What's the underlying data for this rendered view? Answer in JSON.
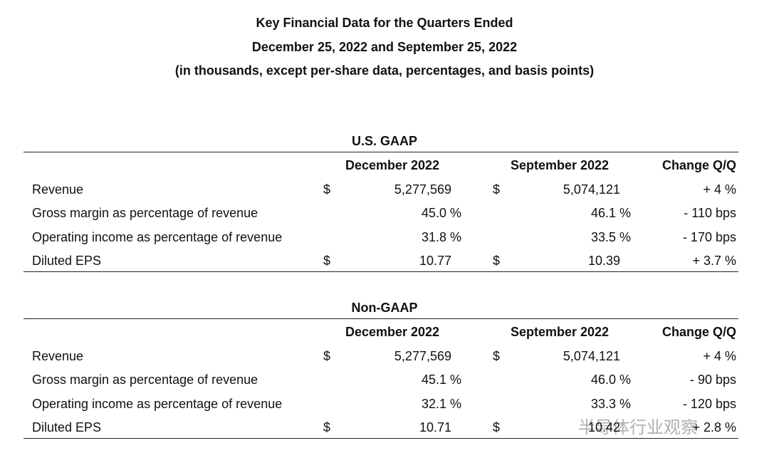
{
  "header": {
    "lines": [
      "Key Financial Data for the Quarters Ended",
      "December 25, 2022 and September 25, 2022",
      "(in thousands, except per-share data, percentages, and basis points)"
    ]
  },
  "sections": [
    {
      "title": "U.S. GAAP",
      "headers": [
        "December 2022",
        "September 2022",
        "Change Q/Q"
      ],
      "rows": [
        {
          "label": "Revenue",
          "cells": [
            {
              "currency": "$",
              "value": "5,277,569"
            },
            {
              "currency": "$",
              "value": "5,074,121"
            }
          ],
          "change": "+ 4 %"
        },
        {
          "label": "Gross margin as percentage of revenue",
          "cells": [
            {
              "value": "45.0 %"
            },
            {
              "value": "46.1 %"
            }
          ],
          "change": "- 110 bps"
        },
        {
          "label": "Operating income as percentage of revenue",
          "cells": [
            {
              "value": "31.8 %"
            },
            {
              "value": "33.5 %"
            }
          ],
          "change": "- 170 bps"
        },
        {
          "label": "Diluted EPS",
          "cells": [
            {
              "currency": "$",
              "value": "10.77"
            },
            {
              "currency": "$",
              "value": "10.39"
            }
          ],
          "change": "+ 3.7 %"
        }
      ]
    },
    {
      "title": "Non-GAAP",
      "headers": [
        "December 2022",
        "September 2022",
        "Change Q/Q"
      ],
      "rows": [
        {
          "label": "Revenue",
          "cells": [
            {
              "currency": "$",
              "value": "5,277,569"
            },
            {
              "currency": "$",
              "value": "5,074,121"
            }
          ],
          "change": "+ 4 %"
        },
        {
          "label": "Gross margin as percentage of revenue",
          "cells": [
            {
              "value": "45.1 %"
            },
            {
              "value": "46.0 %"
            }
          ],
          "change": "- 90 bps"
        },
        {
          "label": "Operating income as percentage of revenue",
          "cells": [
            {
              "value": "32.1 %"
            },
            {
              "value": "33.3 %"
            }
          ],
          "change": "- 120 bps"
        },
        {
          "label": "Diluted EPS",
          "cells": [
            {
              "currency": "$",
              "value": "10.71"
            },
            {
              "currency": "$",
              "value": "10.42"
            }
          ],
          "change": "+ 2.8 %"
        }
      ]
    }
  ],
  "watermark": "半导体行业观察"
}
